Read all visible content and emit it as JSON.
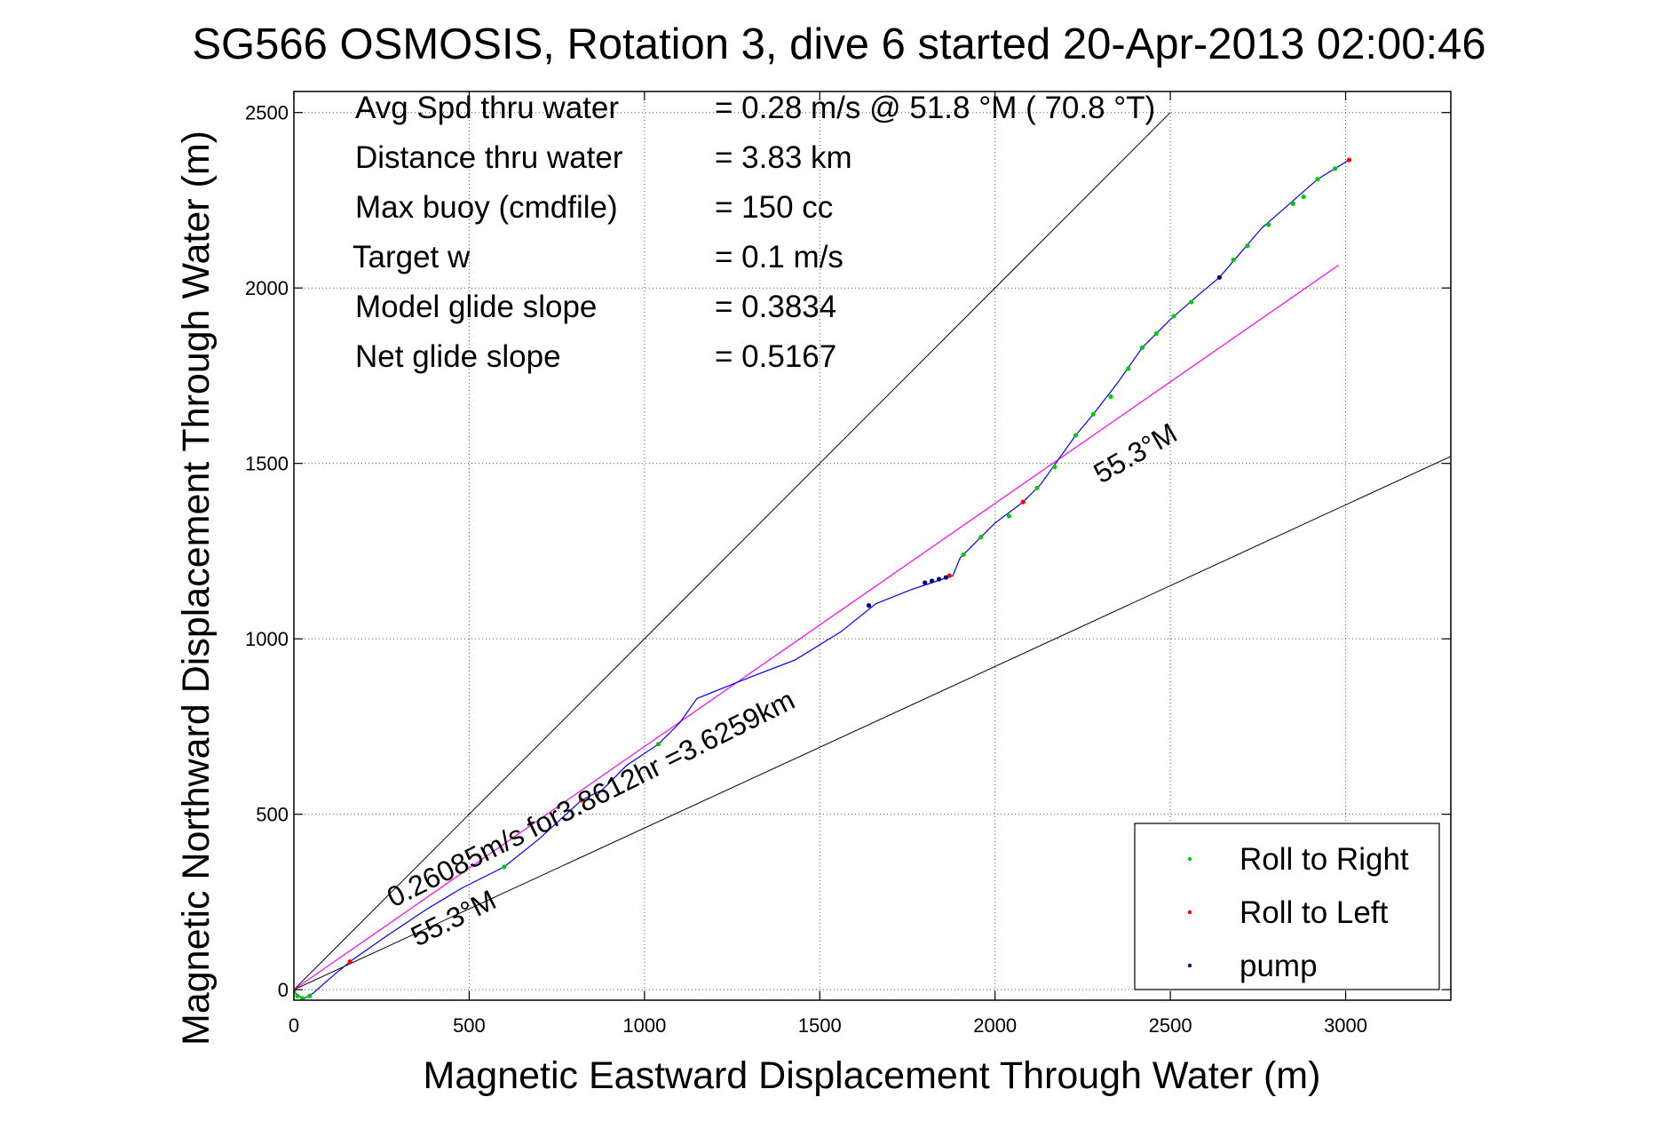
{
  "figure": {
    "title": "SG566 OSMOSIS, Rotation 3, dive 6 started 20-Apr-2013 02:00:46",
    "xlabel": "Magnetic Eastward Displacement Through Water (m)",
    "ylabel": "Magnetic Northward Displacement Through Water (m)"
  },
  "stats": [
    {
      "label": "Avg Spd thru water",
      "value": "=  0.28 m/s @  51.8 °M ( 70.8 °T)"
    },
    {
      "label": "Distance thru water",
      "value": "=  3.83 km"
    },
    {
      "label": "Max buoy (cmdfile)",
      "value": "= 150 cc"
    },
    {
      "label": "Target w",
      "value": "= 0.1 m/s"
    },
    {
      "label": "Model glide slope",
      "value": "= 0.3834"
    },
    {
      "label": "Net glide slope",
      "value": "= 0.5167"
    }
  ],
  "annotations": {
    "speed_label": "0.26085m/s for3.8612hr =3.6259km",
    "heading_label_lower": "55.3°M",
    "heading_label_upper": "55.3°M"
  },
  "legend": {
    "items": [
      {
        "label": "Roll to Right",
        "color": "#00cc00"
      },
      {
        "label": "Roll to Left",
        "color": "#ff0000"
      },
      {
        "label": "pump",
        "color": "#000080"
      }
    ]
  },
  "chart_data": {
    "type": "scatter",
    "xlim": [
      0,
      3300
    ],
    "ylim": [
      -30,
      2560
    ],
    "xticks": [
      0,
      500,
      1000,
      1500,
      2000,
      2500,
      3000
    ],
    "yticks": [
      0,
      500,
      1000,
      1500,
      2000,
      2500
    ],
    "grid": true,
    "legend_position": "bottom-right",
    "colors": {
      "track": "#0000ff",
      "target_line": "#ff00ff",
      "guide_lines": "#000000"
    },
    "track": [
      [
        0,
        0
      ],
      [
        8,
        -15
      ],
      [
        30,
        -25
      ],
      [
        55,
        -10
      ],
      [
        100,
        30
      ],
      [
        160,
        80
      ],
      [
        260,
        150
      ],
      [
        380,
        230
      ],
      [
        480,
        290
      ],
      [
        600,
        350
      ],
      [
        700,
        430
      ],
      [
        820,
        540
      ],
      [
        880,
        570
      ],
      [
        950,
        640
      ],
      [
        1040,
        700
      ],
      [
        1100,
        760
      ],
      [
        1150,
        830
      ],
      [
        1300,
        890
      ],
      [
        1430,
        940
      ],
      [
        1560,
        1020
      ],
      [
        1660,
        1100
      ],
      [
        1760,
        1140
      ],
      [
        1820,
        1160
      ],
      [
        1880,
        1180
      ],
      [
        1900,
        1230
      ],
      [
        1960,
        1290
      ],
      [
        2000,
        1330
      ],
      [
        2080,
        1390
      ],
      [
        2130,
        1440
      ],
      [
        2180,
        1510
      ],
      [
        2230,
        1580
      ],
      [
        2280,
        1640
      ],
      [
        2350,
        1730
      ],
      [
        2420,
        1830
      ],
      [
        2500,
        1910
      ],
      [
        2580,
        1980
      ],
      [
        2640,
        2030
      ],
      [
        2700,
        2100
      ],
      [
        2760,
        2170
      ],
      [
        2840,
        2240
      ],
      [
        2920,
        2310
      ],
      [
        3010,
        2365
      ]
    ],
    "roll_right": [
      [
        0,
        -5
      ],
      [
        10,
        -18
      ],
      [
        25,
        -25
      ],
      [
        45,
        -18
      ],
      [
        600,
        350
      ],
      [
        1040,
        700
      ],
      [
        1910,
        1240
      ],
      [
        1960,
        1290
      ],
      [
        2040,
        1350
      ],
      [
        2120,
        1430
      ],
      [
        2170,
        1490
      ],
      [
        2230,
        1580
      ],
      [
        2280,
        1640
      ],
      [
        2330,
        1690
      ],
      [
        2380,
        1770
      ],
      [
        2420,
        1830
      ],
      [
        2460,
        1870
      ],
      [
        2510,
        1920
      ],
      [
        2560,
        1960
      ],
      [
        2680,
        2080
      ],
      [
        2720,
        2120
      ],
      [
        2780,
        2180
      ],
      [
        2850,
        2240
      ],
      [
        2880,
        2260
      ],
      [
        2920,
        2310
      ],
      [
        2970,
        2340
      ]
    ],
    "roll_left": [
      [
        160,
        80
      ],
      [
        820,
        540
      ],
      [
        1870,
        1180
      ],
      [
        2080,
        1390
      ],
      [
        3010,
        2365
      ]
    ],
    "pump": [
      [
        1640,
        1095
      ],
      [
        1800,
        1160
      ],
      [
        1820,
        1165
      ],
      [
        1840,
        1170
      ],
      [
        1860,
        1175
      ],
      [
        2640,
        2030
      ]
    ],
    "target_line": [
      [
        0,
        0
      ],
      [
        2980,
        2065
      ]
    ],
    "guide_lines": [
      [
        [
          0,
          0
        ],
        [
          2500,
          2500
        ]
      ],
      [
        [
          0,
          0
        ],
        [
          3300,
          1520
        ]
      ]
    ]
  }
}
